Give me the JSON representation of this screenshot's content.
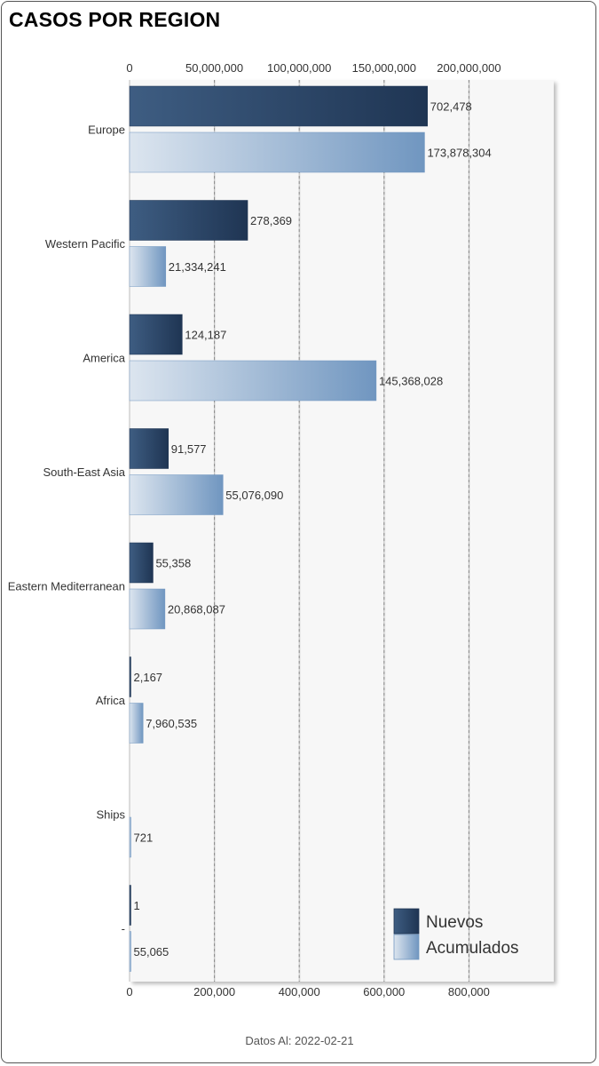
{
  "title": "CASOS POR REGION",
  "footer": "Datos Al: 2022-02-21",
  "colors": {
    "nuevos_dark": "#1f3553",
    "nuevos_light": "#3e5d82",
    "acumulados_light": "#dce5ef",
    "acumulados_dark": "#7096c0",
    "plot_bg": "#f7f7f7"
  },
  "chart_data": {
    "type": "bar",
    "orientation": "horizontal",
    "categories": [
      "Europe",
      "Western Pacific",
      "America",
      "South-East Asia",
      "Eastern Mediterranean",
      "Africa",
      "Ships",
      "-"
    ],
    "series": [
      {
        "name": "Nuevos",
        "axis": "bottom",
        "values": [
          702478,
          278369,
          124187,
          91577,
          55358,
          2167,
          0,
          1
        ],
        "labels": [
          "702,478",
          "278,369",
          "124,187",
          "91,577",
          "55,358",
          "2,167",
          "",
          "1"
        ]
      },
      {
        "name": "Acumulados",
        "axis": "top",
        "values": [
          173878304,
          21334241,
          145368028,
          55076090,
          20868087,
          7960535,
          721,
          55065
        ],
        "labels": [
          "173,878,304",
          "21,334,241",
          "145,368,028",
          "55,076,090",
          "20,868,087",
          "7,960,535",
          "721",
          "55,065"
        ]
      }
    ],
    "top_axis": {
      "min": 0,
      "max": 250000000,
      "ticks": [
        0,
        50000000,
        100000000,
        150000000,
        200000000
      ],
      "tick_labels": [
        "0",
        "50,000,000",
        "100,000,000",
        "150,000,000",
        "200,000,000"
      ]
    },
    "bottom_axis": {
      "min": 0,
      "max": 1000000,
      "ticks": [
        0,
        200000,
        400000,
        600000,
        800000
      ],
      "tick_labels": [
        "0",
        "200,000",
        "400,000",
        "600,000",
        "800,000"
      ]
    },
    "legend": {
      "position": "bottom-right",
      "entries": [
        "Nuevos",
        "Acumulados"
      ]
    },
    "grid": true
  }
}
